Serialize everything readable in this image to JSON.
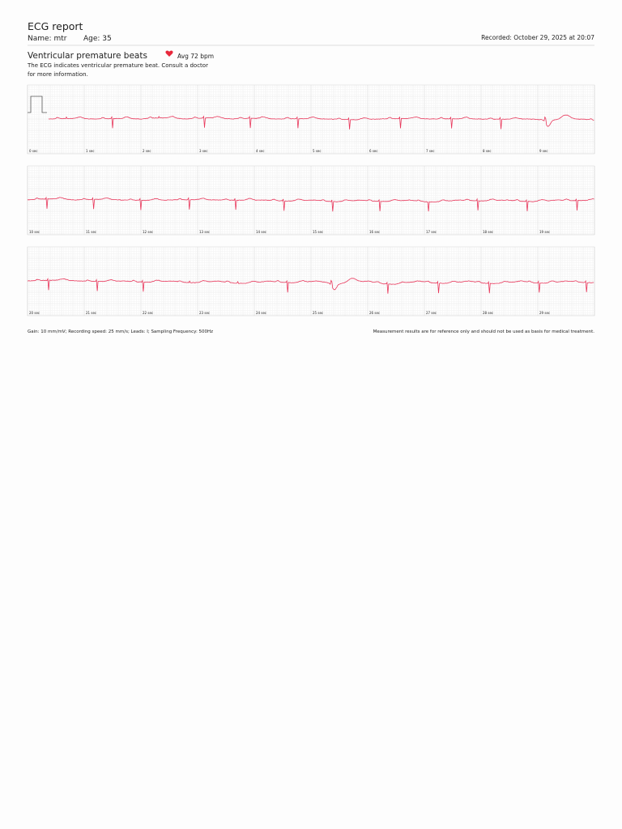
{
  "header": {
    "title": "ECG report",
    "name": "Name: mtr",
    "age": "Age: 35",
    "recorded": "Recorded: October 29, 2025 at 20:07"
  },
  "finding": {
    "title": "Ventricular premature beats",
    "avg": "Avg 72 bpm",
    "description": [
      "The ECG indicates ventricular premature beat. Consult a doctor",
      "for more information."
    ]
  },
  "strips": [
    {
      "time_labels": [
        "0 sec",
        "1 sec",
        "2 sec",
        "3 sec",
        "4 sec",
        "5 sec",
        "6 sec",
        "7 sec",
        "8 sec",
        "9 sec"
      ]
    },
    {
      "time_labels": [
        "10 sec",
        "11 sec",
        "12 sec",
        "13 sec",
        "14 sec",
        "15 sec",
        "16 sec",
        "17 sec",
        "18 sec",
        "19 sec"
      ]
    },
    {
      "time_labels": [
        "20 sec",
        "21 sec",
        "22 sec",
        "23 sec",
        "24 sec",
        "25 sec",
        "26 sec",
        "27 sec",
        "28 sec",
        "29 sec"
      ]
    }
  ],
  "footer": {
    "settings": "Gain: 10 mm/mV;  Recording speed: 25 mm/s;  Leads: I;  Sampling Frequency: 500Hz",
    "disclaimer": "Measurement results are for reference only and should not be used as basis for medical treatment."
  }
}
